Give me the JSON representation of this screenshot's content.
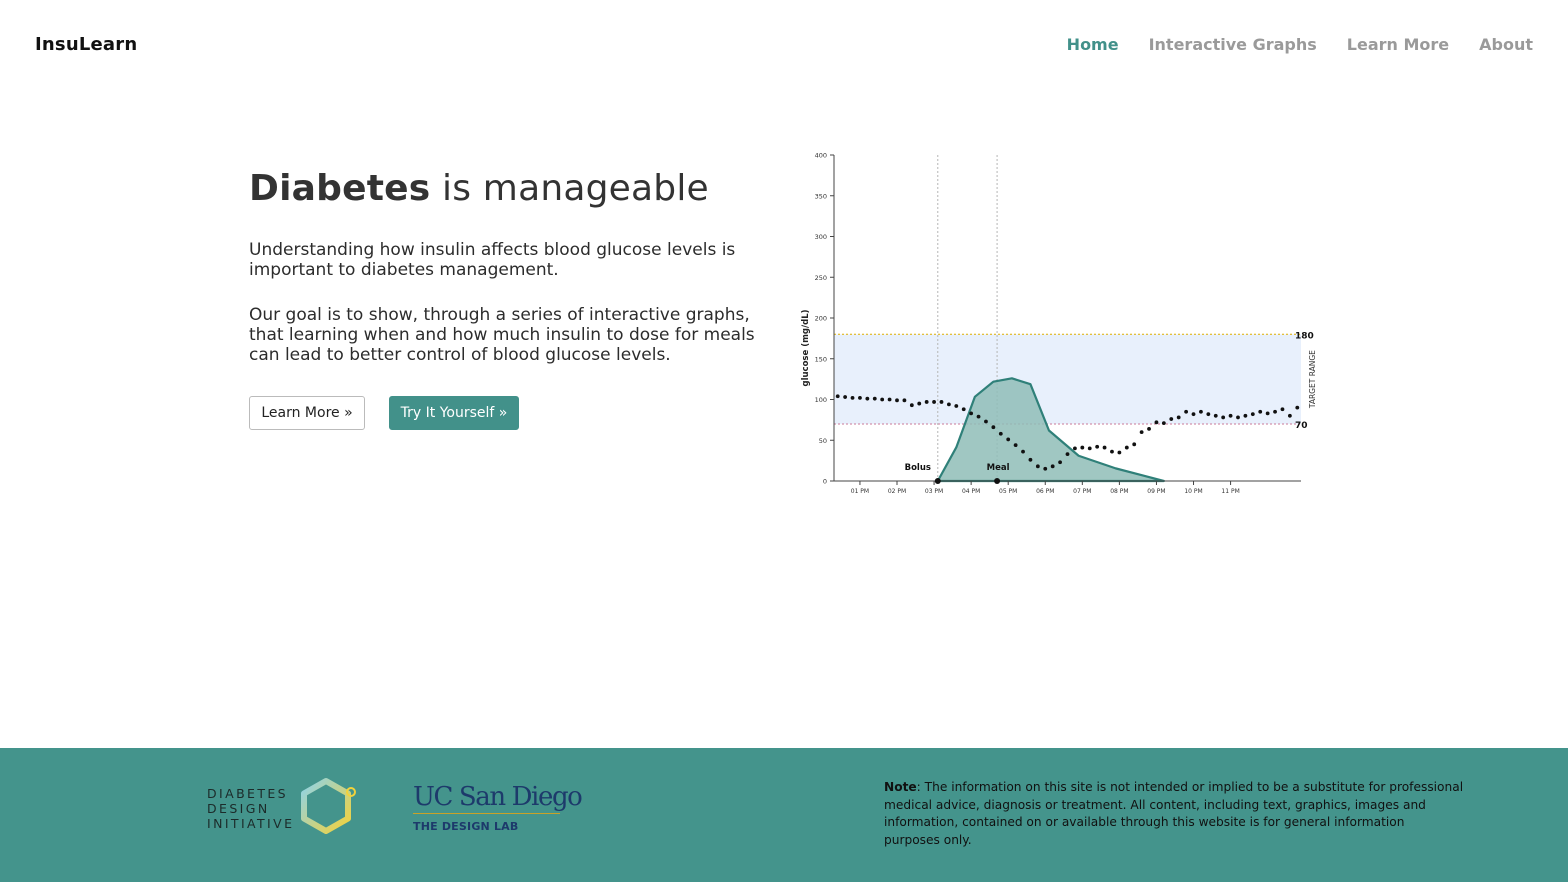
{
  "nav": {
    "brand": "InsuLearn",
    "links": [
      {
        "label": "Home",
        "active": true
      },
      {
        "label": "Interactive Graphs",
        "active": false
      },
      {
        "label": "Learn More",
        "active": false
      },
      {
        "label": "About",
        "active": false
      }
    ]
  },
  "hero": {
    "title_bold": "Diabetes",
    "title_rest": " is manageable",
    "paragraph1": "Understanding how insulin affects blood glucose levels is important to diabetes management.",
    "paragraph2": "Our goal is to show, through a series of interactive graphs, that learning when and how much insulin to dose for meals can lead to better control of blood glucose levels.",
    "button_learn_more": "Learn More »",
    "button_try": "Try It Yourself »"
  },
  "footer": {
    "ddi_logo_lines": [
      "DIABETES",
      "DESIGN",
      "INITIATIVE"
    ],
    "ucsd_name": "UC San Diego",
    "ucsd_sub": "THE DESIGN LAB",
    "note_label": "Note",
    "note_text": ": The information on this site is not intended or implied to be a substitute for professional medical advice, diagnosis or treatment. All content, including text, graphics, images and information, contained on or available through this website is for general information purposes only."
  },
  "colors": {
    "accent": "#42918a",
    "footer_bg": "#44948c",
    "target_band": "#e8f0fc",
    "upper_line": "#e0b000",
    "lower_line": "#c97a9a",
    "insulin_fill": "#8fbdb7",
    "insulin_stroke": "#2f8079"
  },
  "chart_data": {
    "type": "line",
    "ylabel": "glucose (mg/dL)",
    "ylim": [
      0,
      400
    ],
    "y_ticks": [
      0,
      50,
      100,
      150,
      200,
      250,
      300,
      350,
      400
    ],
    "x_tick_labels": [
      "01 PM",
      "02 PM",
      "03 PM",
      "04 PM",
      "05 PM",
      "06 PM",
      "07 PM",
      "08 PM",
      "09 PM",
      "10 PM",
      "11 PM"
    ],
    "xlim_hours": [
      12.3,
      24.9
    ],
    "target_range": {
      "low": 70,
      "high": 180,
      "label": "TARGET RANGE",
      "low_label": "70",
      "high_label": "180"
    },
    "events": [
      {
        "name": "Bolus",
        "hour": 15.1
      },
      {
        "name": "Meal",
        "hour": 16.7
      }
    ],
    "glucose_series": {
      "hours": [
        12.4,
        12.6,
        12.8,
        13.0,
        13.2,
        13.4,
        13.6,
        13.8,
        14.0,
        14.2,
        14.4,
        14.6,
        14.8,
        15.0,
        15.2,
        15.4,
        15.6,
        15.8,
        16.0,
        16.2,
        16.4,
        16.6,
        16.8,
        17.0,
        17.2,
        17.4,
        17.6,
        17.8,
        18.0,
        18.2,
        18.4,
        18.6,
        18.8,
        19.0,
        19.2,
        19.4,
        19.6,
        19.8,
        20.0,
        20.2,
        20.4,
        20.6,
        20.8,
        21.0,
        21.2,
        21.4,
        21.6,
        21.8,
        22.0,
        22.2,
        22.4,
        22.6,
        22.8,
        23.0,
        23.2,
        23.4,
        23.6,
        23.8,
        24.0,
        24.2,
        24.4,
        24.6,
        24.8
      ],
      "glucose": [
        104,
        103,
        102,
        102,
        101,
        101,
        100,
        100,
        99,
        99,
        93,
        95,
        97,
        97,
        97,
        94,
        92,
        88,
        83,
        79,
        73,
        66,
        58,
        51,
        44,
        36,
        26,
        18,
        15,
        18,
        23,
        33,
        40,
        41,
        40,
        42,
        41,
        36,
        35,
        41,
        45,
        60,
        64,
        72,
        71,
        76,
        78,
        85,
        82,
        85,
        82,
        80,
        78,
        80,
        78,
        80,
        82,
        85,
        83,
        85,
        88,
        80,
        90
      ]
    },
    "insulin_activity": {
      "hours": [
        15.1,
        15.6,
        16.1,
        16.6,
        17.1,
        17.6,
        18.1,
        18.9,
        19.9,
        21.2
      ],
      "relative_level": [
        0,
        40,
        100,
        118,
        122,
        115,
        60,
        30,
        15,
        0
      ]
    }
  }
}
